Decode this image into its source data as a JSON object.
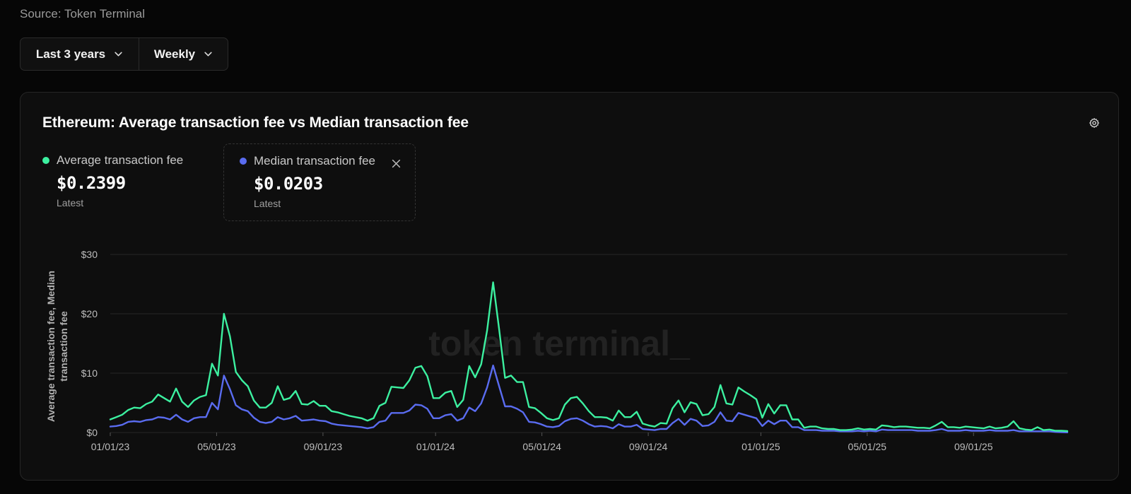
{
  "source": "Source: Token Terminal",
  "controls": {
    "range_label": "Last 3 years",
    "interval_label": "Weekly"
  },
  "card": {
    "title": "Ethereum: Average transaction fee vs Median transaction fee",
    "watermark": "token terminal_"
  },
  "legend": {
    "avg": {
      "label": "Average transaction fee",
      "value": "$0.2399",
      "sub": "Latest",
      "color": "#3cf0a0"
    },
    "med": {
      "label": "Median transaction fee",
      "value": "$0.0203",
      "sub": "Latest",
      "color": "#5a6cf0"
    }
  },
  "chart_data": {
    "type": "line",
    "ylabel": "Average transaction fee, Median transaction fee",
    "ylim": [
      0,
      30
    ],
    "yticks": [
      0,
      10,
      20,
      30
    ],
    "ytick_labels": [
      "$0",
      "$10",
      "$20",
      "$30"
    ],
    "xlim": [
      0,
      153
    ],
    "xticks": [
      0,
      17,
      34,
      52,
      69,
      86,
      104,
      121,
      138
    ],
    "xtick_labels": [
      "01/01/23",
      "05/01/23",
      "09/01/23",
      "01/01/24",
      "05/01/24",
      "09/01/24",
      "01/01/25",
      "05/01/25",
      "09/01/25"
    ],
    "grid": true,
    "series": [
      {
        "name": "Average transaction fee",
        "color": "#3cf0a0",
        "values": [
          2.2,
          2.6,
          3,
          3.8,
          4.2,
          4.1,
          4.8,
          5.2,
          6.4,
          5.8,
          5.2,
          7.4,
          5.2,
          4.3,
          5.4,
          6,
          6.3,
          11.6,
          9.6,
          20,
          16.2,
          10.2,
          8.8,
          7.8,
          5.4,
          4.2,
          4.2,
          5,
          7.8,
          5.5,
          5.8,
          7,
          4.8,
          4.7,
          5.3,
          4.5,
          4.5,
          3.6,
          3.4,
          3.1,
          2.8,
          2.6,
          2.4,
          2,
          2.4,
          4.5,
          5,
          7.7,
          7.6,
          7.5,
          8.8,
          10.9,
          11.2,
          9.5,
          5.8,
          5.8,
          6.7,
          7,
          4.3,
          5.5,
          11.2,
          9.3,
          11.5,
          17.2,
          25.3,
          17.4,
          9.2,
          9.6,
          8.5,
          8.5,
          4.3,
          4.1,
          3.3,
          2.4,
          2.1,
          2.4,
          4.7,
          5.8,
          6,
          4.9,
          3.6,
          2.6,
          2.6,
          2.5,
          2,
          3.7,
          2.6,
          2.6,
          3.5,
          1.5,
          1.2,
          1,
          1.6,
          1.5,
          4.1,
          5.4,
          3.4,
          5.1,
          4.8,
          2.9,
          3.1,
          4.3,
          8,
          4.9,
          4.7,
          7.6,
          6.9,
          6.3,
          5.6,
          2.5,
          4.8,
          3.2,
          4.6,
          4.6,
          2.2,
          2.2,
          0.8,
          1,
          1,
          0.7,
          0.6,
          0.6,
          0.4,
          0.4,
          0.5,
          0.7,
          0.5,
          0.6,
          0.5,
          1.2,
          1.1,
          0.9,
          1,
          1,
          0.9,
          0.8,
          0.8,
          0.7,
          1.2,
          1.8,
          0.9,
          0.9,
          0.8,
          1,
          0.9,
          0.8,
          0.7,
          1,
          0.7,
          0.8,
          1,
          1.9,
          0.7,
          0.5,
          0.4,
          0.9,
          0.4,
          0.5,
          0.3,
          0.3,
          0.24
        ]
      },
      {
        "name": "Median transaction fee",
        "color": "#5a6cf0",
        "values": [
          1,
          1.1,
          1.3,
          1.8,
          1.9,
          1.8,
          2.1,
          2.2,
          2.6,
          2.5,
          2.2,
          3,
          2.2,
          1.8,
          2.4,
          2.6,
          2.6,
          5,
          3.9,
          9.6,
          7.3,
          4.6,
          3.9,
          3.6,
          2.5,
          1.8,
          1.6,
          1.8,
          2.6,
          2.2,
          2.4,
          2.8,
          2,
          2.1,
          2.2,
          2,
          1.9,
          1.5,
          1.3,
          1.2,
          1.1,
          1,
          0.9,
          0.7,
          0.9,
          1.8,
          2,
          3.3,
          3.3,
          3.3,
          3.7,
          4.7,
          4.6,
          4,
          2.4,
          2.4,
          2.9,
          3.1,
          2,
          2.4,
          4.2,
          3.6,
          4.9,
          7.6,
          11.3,
          7.8,
          4.4,
          4.4,
          4,
          3.4,
          1.8,
          1.7,
          1.4,
          1,
          0.9,
          1.1,
          1.9,
          2.3,
          2.4,
          2,
          1.4,
          1,
          1.1,
          1,
          0.7,
          1.4,
          1,
          1,
          1.3,
          0.6,
          0.5,
          0.4,
          0.6,
          0.6,
          1.6,
          2.3,
          1.3,
          2.3,
          2,
          1.1,
          1.2,
          1.8,
          3.4,
          2,
          1.9,
          3.3,
          3,
          2.7,
          2.4,
          1.1,
          2,
          1.4,
          2,
          2,
          0.9,
          0.9,
          0.4,
          0.4,
          0.4,
          0.3,
          0.3,
          0.3,
          0.2,
          0.2,
          0.2,
          0.3,
          0.2,
          0.3,
          0.2,
          0.5,
          0.4,
          0.4,
          0.4,
          0.4,
          0.4,
          0.3,
          0.3,
          0.3,
          0.4,
          0.6,
          0.3,
          0.3,
          0.3,
          0.4,
          0.3,
          0.3,
          0.3,
          0.4,
          0.3,
          0.3,
          0.3,
          0.4,
          0.2,
          0.2,
          0.2,
          0.2,
          0.2,
          0.2,
          0.1,
          0.05,
          0.02
        ]
      }
    ]
  }
}
